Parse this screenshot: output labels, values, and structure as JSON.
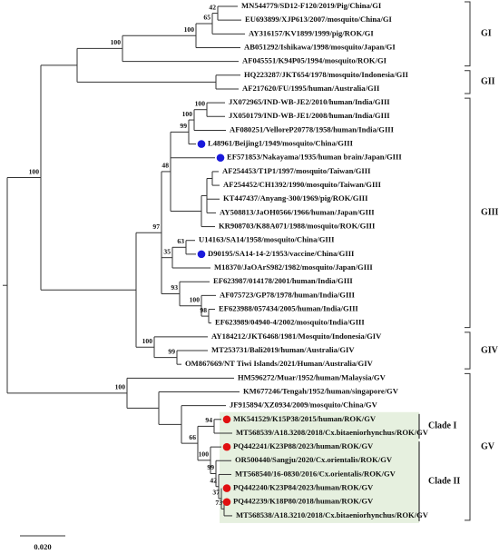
{
  "leaves": [
    "MN544779/SD12-F120/2019/Pig/China/GI",
    "EU693899/XJP613/2007/mosquito/China/GI",
    "AY316157/KV1899/1999/pig/ROK/GI",
    "AB051292/Ishikawa/1998/mosquito/Japan/GI",
    "AF045551/K94P05/1994/mosquito/ROK/GI",
    "HQ223287/JKT654/1978/mosquito/Indonesia/GII",
    "AF217620/FU/1995/human/Australia/GII",
    "JX072965/IND-WB-JE2/2010/human/India/GIII",
    "JX050179/IND-WB-JE1/2008/human/India/GIII",
    "AF080251/VelloreP20778/1958/human/India/GIII",
    "L48961/Beijing1/1949/mosquito/China/GIII",
    "EF571853/Nakayama/1935/human brain/Japan/GIII",
    "AF254453/T1P1/1997/mosquito/Taiwan/GIII",
    "AF254452/CH1392/1990/mosquito/Taiwan/GIII",
    "KT447437/Anyang-300/1969/pig/ROK/GIII",
    "AY508813/JaOH0566/1966/human/Japan/GIII",
    "KR908703/K88A071/1988/mosquito/ROK/GIII",
    "U14163/SA14/1958/mosquito/China/GIII",
    "D90195/SA14-14-2/1953/vaccine/China/GIII",
    "M18370/JaOArS982/1982/mosquito/Japan/GIII",
    "EF623987/014178/2001/human/India/GIII",
    "AF075723/GP78/1978/human/India/GIII",
    "EF623988/057434/2005/human/India/GIII",
    "EF623989/04940-4/2002/mosquito/India/GIII",
    "AY184212/JKT6468/1981/Mosquito/Indonesia/GIV",
    "MT253731/Bali2019/human/Australia/GIV",
    "OM867669/NT Tiwi Islands/2021/Human/Australia/GIV",
    "HM596272/Muar/1952/human/Malaysia/GV",
    "KM677246/Tengah/1952/human/singapore/GV",
    "JF915894/XZ0934/2009/mosquito/China/GV",
    "MK541529/K15P38/2015/human/ROK/GV",
    "MT568539/A18.3208/2018/Cx.bitaeniorhynchus/ROK/GV",
    "PQ442241/K23P88/2023/human/ROK/GV",
    "OR500440/Sangju/2020/Cx.orientalis/ROK/GV",
    "MT568540/16-0830/2016/Cx.orientalis/ROK/GV",
    "PQ442240/K23P84/2023/human/ROK/GV",
    "PQ442239/K18P80/2018/human/ROK/GV",
    "MT568538/A18.3210/2018/Cx.bitaeniorhynchus/ROK/GV"
  ],
  "bootstraps": [
    42,
    65,
    100,
    100,
    100,
    100,
    99,
    48,
    63,
    35,
    100,
    98,
    93,
    97,
    99,
    100,
    100,
    94,
    73,
    37,
    42,
    99,
    100,
    66,
    100
  ],
  "clades": [
    "GI",
    "GII",
    "GIII",
    "GIV",
    "GV"
  ],
  "subclades": [
    "Clade I",
    "Clade II"
  ],
  "scale_bar": "0.020"
}
